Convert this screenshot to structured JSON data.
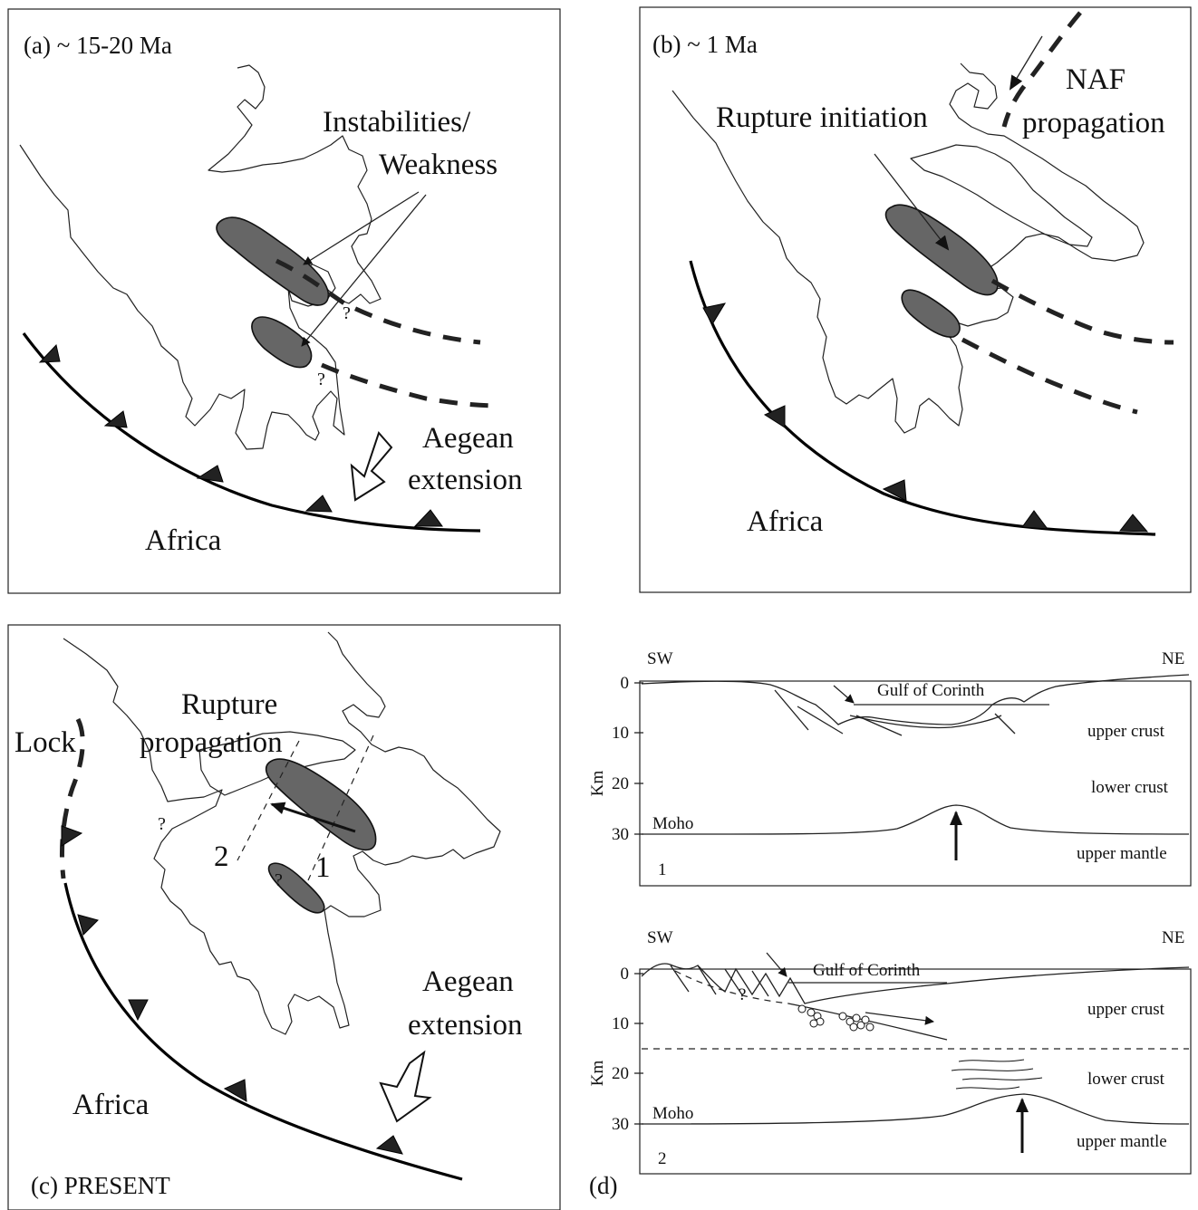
{
  "panel_a": {
    "label": "(a)  ~ 15-20 Ma",
    "instabilities_line1": "Instabilities/",
    "instabilities_line2": "Weakness",
    "aegean_line1": "Aegean",
    "aegean_line2": "extension",
    "africa": "Africa",
    "q1": "?",
    "q2": "?"
  },
  "panel_b": {
    "label": "(b)  ~ 1 Ma",
    "rupture_initiation": "Rupture initiation",
    "naf_line1": "NAF",
    "naf_line2": "propagation",
    "africa": "Africa"
  },
  "panel_c": {
    "label": "(c)  PRESENT",
    "lock": "Lock",
    "rupture_line1": "Rupture",
    "rupture_line2": "propagation",
    "section_1": "1",
    "section_2": "2",
    "aegean_line1": "Aegean",
    "aegean_line2": "extension",
    "africa": "Africa",
    "q1": "?",
    "q2": "?"
  },
  "panel_d": {
    "label": "(d)",
    "axis_title": "Km",
    "section1": {
      "left": "SW",
      "right": "NE",
      "gulf": "Gulf of Corinth",
      "ticks": [
        "0",
        "10",
        "20",
        "30"
      ],
      "moho": "Moho",
      "upper_crust": "upper crust",
      "lower_crust": "lower crust",
      "upper_mantle": "upper mantle",
      "number": "1"
    },
    "section2": {
      "left": "SW",
      "right": "NE",
      "gulf": "Gulf of Corinth",
      "ticks": [
        "0",
        "10",
        "20",
        "30"
      ],
      "moho": "Moho",
      "upper_crust": "upper crust",
      "lower_crust": "lower crust",
      "upper_mantle": "upper mantle",
      "number": "2",
      "q": "?"
    }
  }
}
